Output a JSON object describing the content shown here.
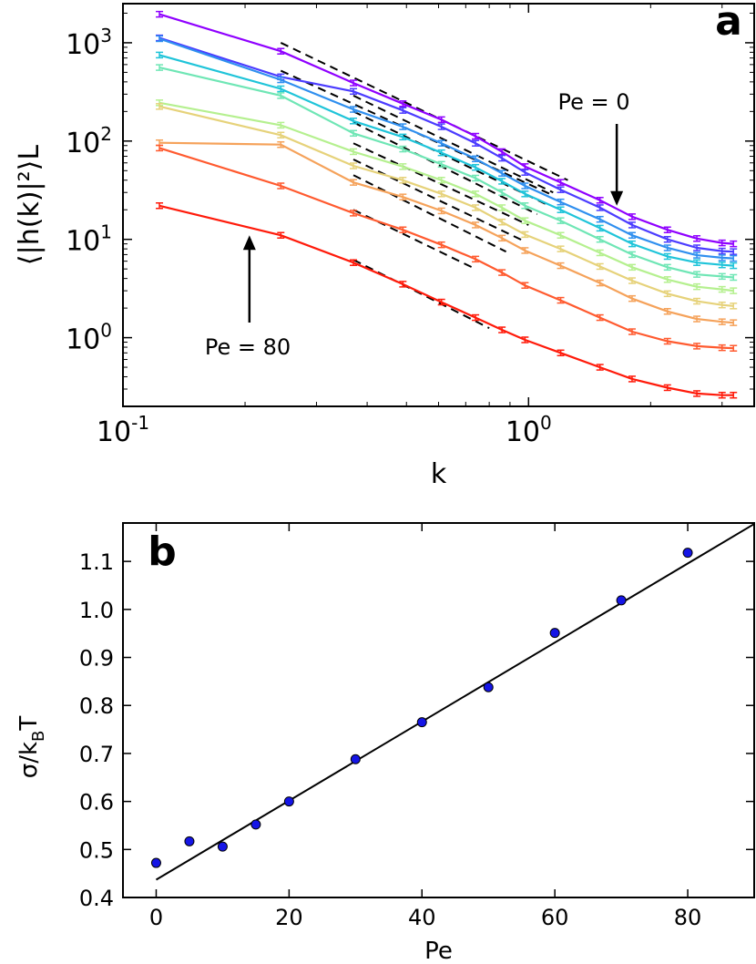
{
  "chart_data": [
    {
      "panel_label": "a",
      "type": "line",
      "xscale": "log",
      "yscale": "log",
      "xlabel": "k",
      "ylabel": "⟨|h(k)|²⟩L",
      "xlim": [
        0.1,
        3.6
      ],
      "ylim": [
        0.2,
        2500
      ],
      "xticks": [
        {
          "value": 0.1,
          "base": "10",
          "exp": "-1"
        },
        {
          "value": 1,
          "base": "10",
          "exp": "0"
        }
      ],
      "yticks": [
        {
          "value": 1,
          "base": "10",
          "exp": "0"
        },
        {
          "value": 10,
          "base": "10",
          "exp": "1"
        },
        {
          "value": 100,
          "base": "10",
          "exp": "2"
        },
        {
          "value": 1000,
          "base": "10",
          "exp": "3"
        }
      ],
      "grid": false,
      "series": [
        {
          "color": "#8f00ff",
          "points": [
            [
              0.123,
              1950
            ],
            [
              0.245,
              820
            ],
            [
              0.37,
              390
            ],
            [
              0.49,
              240
            ],
            [
              0.61,
              165
            ],
            [
              0.74,
              112
            ],
            [
              0.86,
              78
            ],
            [
              0.98,
              55
            ],
            [
              1.2,
              38
            ],
            [
              1.5,
              25
            ],
            [
              1.8,
              17
            ],
            [
              2.2,
              12.5
            ],
            [
              2.6,
              10.2
            ],
            [
              3.0,
              9.2
            ],
            [
              3.2,
              9.0
            ]
          ]
        },
        {
          "color": "#4b3cff",
          "points": [
            [
              0.123,
              1120
            ],
            [
              0.245,
              450
            ],
            [
              0.37,
              320
            ],
            [
              0.49,
              205
            ],
            [
              0.61,
              140
            ],
            [
              0.74,
              95
            ],
            [
              0.86,
              67
            ],
            [
              0.98,
              48
            ],
            [
              1.2,
              32
            ],
            [
              1.5,
              21
            ],
            [
              1.8,
              14
            ],
            [
              2.2,
              10
            ],
            [
              2.6,
              8.2
            ],
            [
              3.0,
              7.6
            ],
            [
              3.2,
              7.5
            ]
          ]
        },
        {
          "color": "#2f8fef",
          "points": [
            [
              0.123,
              1100
            ],
            [
              0.245,
              420
            ],
            [
              0.37,
              210
            ],
            [
              0.49,
              140
            ],
            [
              0.61,
              95
            ],
            [
              0.74,
              66
            ],
            [
              0.86,
              47
            ],
            [
              0.98,
              35
            ],
            [
              1.2,
              24
            ],
            [
              1.5,
              16
            ],
            [
              1.8,
              11
            ],
            [
              2.2,
              8.2
            ],
            [
              2.6,
              6.9
            ],
            [
              3.0,
              6.5
            ],
            [
              3.2,
              6.4
            ]
          ]
        },
        {
          "color": "#1fc4d9",
          "points": [
            [
              0.123,
              750
            ],
            [
              0.245,
              340
            ],
            [
              0.37,
              160
            ],
            [
              0.49,
              110
            ],
            [
              0.61,
              76
            ],
            [
              0.74,
              54
            ],
            [
              0.86,
              39
            ],
            [
              0.98,
              29
            ],
            [
              1.2,
              20
            ],
            [
              1.5,
              13
            ],
            [
              1.8,
              9
            ],
            [
              2.2,
              6.7
            ],
            [
              2.6,
              5.8
            ],
            [
              3.0,
              5.5
            ],
            [
              3.2,
              5.4
            ]
          ]
        },
        {
          "color": "#6fe6b5",
          "points": [
            [
              0.123,
              560
            ],
            [
              0.245,
              290
            ],
            [
              0.37,
              120
            ],
            [
              0.49,
              83
            ],
            [
              0.61,
              58
            ],
            [
              0.74,
              42
            ],
            [
              0.86,
              30
            ],
            [
              0.98,
              22
            ],
            [
              1.2,
              15.5
            ],
            [
              1.5,
              10
            ],
            [
              1.8,
              7
            ],
            [
              2.2,
              5.2
            ],
            [
              2.6,
              4.4
            ],
            [
              3.0,
              4.2
            ],
            [
              3.2,
              4.1
            ]
          ]
        },
        {
          "color": "#b5f08f",
          "points": [
            [
              0.123,
              245
            ],
            [
              0.245,
              145
            ],
            [
              0.37,
              78
            ],
            [
              0.49,
              55
            ],
            [
              0.61,
              40
            ],
            [
              0.74,
              29
            ],
            [
              0.86,
              21
            ],
            [
              0.98,
              15.5
            ],
            [
              1.2,
              11
            ],
            [
              1.5,
              7.3
            ],
            [
              1.8,
              5.2
            ],
            [
              2.2,
              3.9
            ],
            [
              2.6,
              3.3
            ],
            [
              3.0,
              3.1
            ],
            [
              3.2,
              3.0
            ]
          ]
        },
        {
          "color": "#e6d27a",
          "points": [
            [
              0.123,
              225
            ],
            [
              0.245,
              115
            ],
            [
              0.37,
              56
            ],
            [
              0.49,
              40
            ],
            [
              0.61,
              29
            ],
            [
              0.74,
              21
            ],
            [
              0.86,
              15
            ],
            [
              0.98,
              11.2
            ],
            [
              1.2,
              8
            ],
            [
              1.5,
              5.3
            ],
            [
              1.8,
              3.8
            ],
            [
              2.2,
              2.8
            ],
            [
              2.6,
              2.35
            ],
            [
              3.0,
              2.15
            ],
            [
              3.2,
              2.1
            ]
          ]
        },
        {
          "color": "#f5a25a",
          "points": [
            [
              0.123,
              96
            ],
            [
              0.245,
              92
            ],
            [
              0.37,
              38
            ],
            [
              0.49,
              27
            ],
            [
              0.61,
              19.5
            ],
            [
              0.74,
              14
            ],
            [
              0.86,
              10.3
            ],
            [
              0.98,
              7.7
            ],
            [
              1.2,
              5.4
            ],
            [
              1.5,
              3.6
            ],
            [
              1.8,
              2.5
            ],
            [
              2.2,
              1.85
            ],
            [
              2.6,
              1.55
            ],
            [
              3.0,
              1.45
            ],
            [
              3.2,
              1.42
            ]
          ]
        },
        {
          "color": "#ff5a2f",
          "points": [
            [
              0.123,
              85
            ],
            [
              0.245,
              35
            ],
            [
              0.37,
              18.5
            ],
            [
              0.49,
              12.5
            ],
            [
              0.61,
              8.8
            ],
            [
              0.74,
              6.3
            ],
            [
              0.86,
              4.6
            ],
            [
              0.98,
              3.4
            ],
            [
              1.2,
              2.4
            ],
            [
              1.5,
              1.6
            ],
            [
              1.8,
              1.15
            ],
            [
              2.2,
              0.92
            ],
            [
              2.6,
              0.82
            ],
            [
              3.0,
              0.79
            ],
            [
              3.2,
              0.78
            ]
          ]
        },
        {
          "color": "#ff1a0a",
          "points": [
            [
              0.123,
              22
            ],
            [
              0.245,
              11
            ],
            [
              0.37,
              5.8
            ],
            [
              0.49,
              3.5
            ],
            [
              0.61,
              2.3
            ],
            [
              0.74,
              1.6
            ],
            [
              0.86,
              1.2
            ],
            [
              0.98,
              0.95
            ],
            [
              1.2,
              0.7
            ],
            [
              1.5,
              0.5
            ],
            [
              1.8,
              0.38
            ],
            [
              2.2,
              0.31
            ],
            [
              2.6,
              0.27
            ],
            [
              3.0,
              0.26
            ],
            [
              3.2,
              0.26
            ]
          ]
        }
      ],
      "fit_lines_note": "dashed black power-law fits over k in [0.25, 1.3]",
      "fit_lines": [
        {
          "x": [
            0.245,
            1.25
          ],
          "y": [
            1000,
            40
          ]
        },
        {
          "x": [
            0.245,
            1.15
          ],
          "y": [
            520,
            28
          ]
        },
        {
          "x": [
            0.37,
            1.15
          ],
          "y": [
            290,
            30
          ]
        },
        {
          "x": [
            0.37,
            1.1
          ],
          "y": [
            200,
            23
          ]
        },
        {
          "x": [
            0.37,
            1.05
          ],
          "y": [
            155,
            18
          ]
        },
        {
          "x": [
            0.37,
            1.0
          ],
          "y": [
            95,
            14
          ]
        },
        {
          "x": [
            0.37,
            0.98
          ],
          "y": [
            65,
            9.5
          ]
        },
        {
          "x": [
            0.37,
            0.88
          ],
          "y": [
            45,
            7.5
          ]
        },
        {
          "x": [
            0.37,
            0.74
          ],
          "y": [
            20,
            5
          ]
        },
        {
          "x": [
            0.37,
            0.8
          ],
          "y": [
            6.2,
            1.25
          ]
        }
      ],
      "annotations": [
        {
          "text": "Pe = 0",
          "arrow_to": [
            1.65,
            22
          ]
        },
        {
          "text": "Pe = 80",
          "arrow_to": [
            0.205,
            11
          ]
        }
      ]
    },
    {
      "panel_label": "b",
      "type": "scatter",
      "xlabel": "Pe",
      "ylabel": "σ/k",
      "ylabel_sub": "B",
      "ylabel_tail": "T",
      "xlim": [
        -5,
        90
      ],
      "ylim": [
        0.4,
        1.18
      ],
      "xticks": [
        "0",
        "20",
        "40",
        "60",
        "80"
      ],
      "yticks": [
        "0.4",
        "0.5",
        "0.6",
        "0.7",
        "0.8",
        "0.9",
        "1.0",
        "1.1"
      ],
      "grid": false,
      "marker_color": "#1515e6",
      "points": [
        [
          0,
          0.472
        ],
        [
          5,
          0.517
        ],
        [
          10,
          0.506
        ],
        [
          15,
          0.552
        ],
        [
          20,
          0.6
        ],
        [
          30,
          0.688
        ],
        [
          40,
          0.765
        ],
        [
          50,
          0.838
        ],
        [
          60,
          0.951
        ],
        [
          70,
          1.019
        ],
        [
          80,
          1.118
        ]
      ],
      "fit_line": {
        "x": [
          0,
          90
        ],
        "y": [
          0.437,
          1.178
        ]
      }
    }
  ]
}
